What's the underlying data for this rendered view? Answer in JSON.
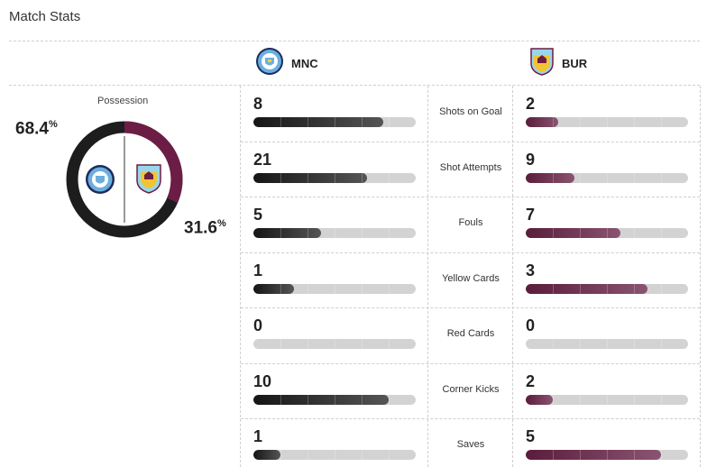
{
  "page": {
    "title": "Match Stats"
  },
  "teams": {
    "home": {
      "abbr": "MNC",
      "crest": "manchester-city-crest",
      "color": "#1d1d1d",
      "light": "#6caee0"
    },
    "away": {
      "abbr": "BUR",
      "crest": "burnley-crest",
      "color": "#6c1d45",
      "light": "#99d6ea"
    }
  },
  "possession": {
    "label": "Possession",
    "home_pct": 68.4,
    "away_pct": 31.6,
    "home_text": "68.4",
    "away_text": "31.6",
    "unit": "%"
  },
  "stats": [
    {
      "label": "Shots on Goal",
      "home": 8,
      "away": 2,
      "home_text": "8",
      "away_text": "2"
    },
    {
      "label": "Shot Attempts",
      "home": 21,
      "away": 9,
      "home_text": "21",
      "away_text": "9"
    },
    {
      "label": "Fouls",
      "home": 5,
      "away": 7,
      "home_text": "5",
      "away_text": "7"
    },
    {
      "label": "Yellow Cards",
      "home": 1,
      "away": 3,
      "home_text": "1",
      "away_text": "3"
    },
    {
      "label": "Red Cards",
      "home": 0,
      "away": 0,
      "home_text": "0",
      "away_text": "0"
    },
    {
      "label": "Corner Kicks",
      "home": 10,
      "away": 2,
      "home_text": "10",
      "away_text": "2"
    },
    {
      "label": "Saves",
      "home": 1,
      "away": 5,
      "home_text": "1",
      "away_text": "5"
    }
  ]
}
